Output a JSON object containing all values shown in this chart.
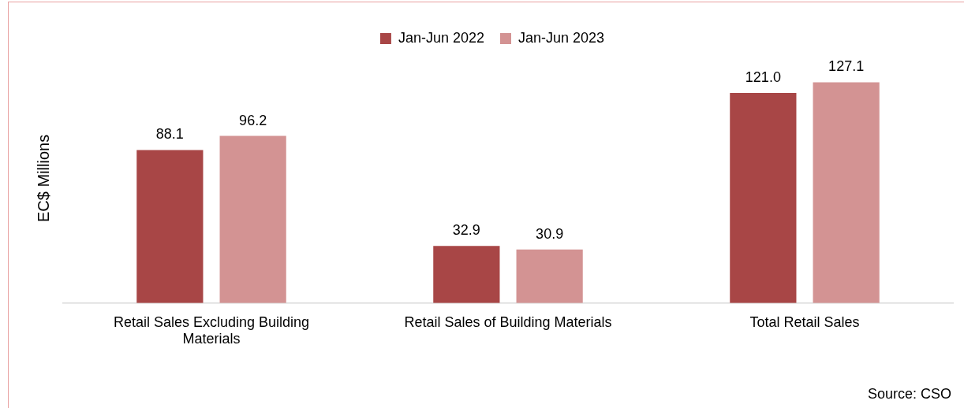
{
  "chart_data": {
    "type": "bar",
    "ylabel": "EC$ Millions",
    "categories": [
      "Retail Sales Excluding Building Materials",
      "Retail Sales of Building Materials",
      "Total Retail Sales"
    ],
    "series": [
      {
        "name": "Jan-Jun 2022",
        "color": "#a84646",
        "values": [
          88.1,
          32.9,
          121.0
        ],
        "value_labels": [
          "88.1",
          "32.9",
          "121.0"
        ]
      },
      {
        "name": "Jan-Jun 2023",
        "color": "#d39393",
        "values": [
          96.2,
          30.9,
          127.1
        ],
        "value_labels": [
          "96.2",
          "30.9",
          "127.1"
        ]
      }
    ],
    "legend": "top",
    "grid": false,
    "annotations": [
      "Source: CSO"
    ]
  }
}
